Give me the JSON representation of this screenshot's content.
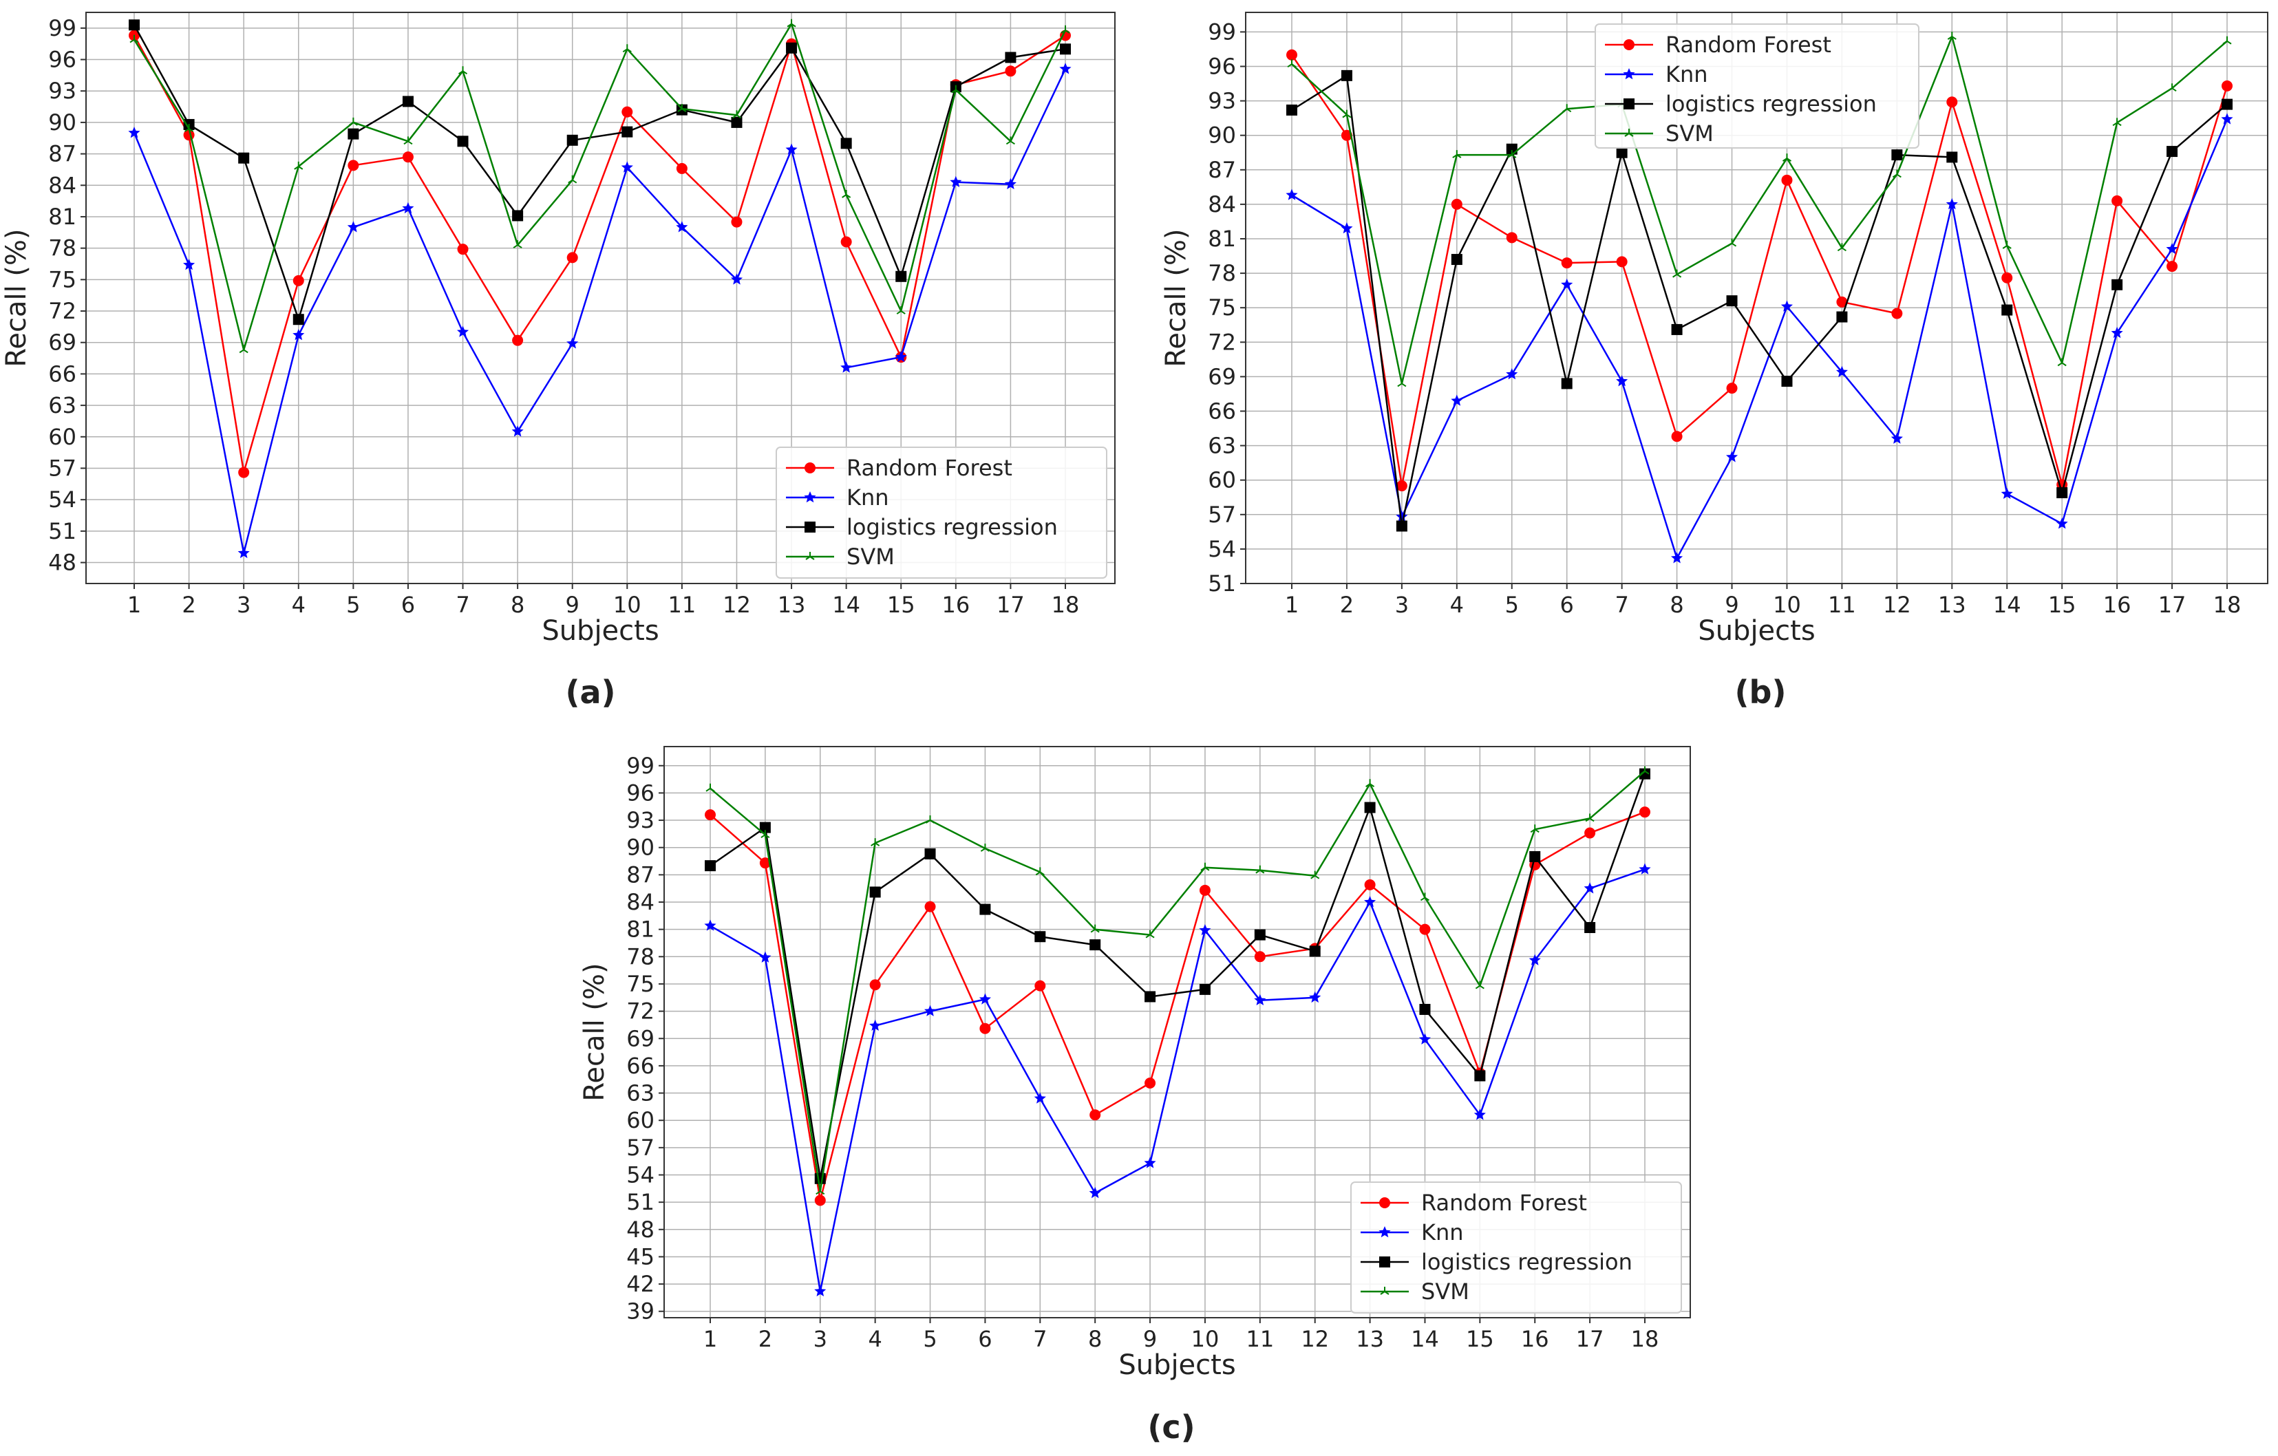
{
  "series_colors": {
    "Random Forest": "#ff0000",
    "Knn": "#0000ff",
    "logistics regression": "#000000",
    "SVM": "#008000"
  },
  "chart_data": [
    {
      "id": "a",
      "panel_label": "(a)",
      "type": "line",
      "xlabel": "Subjects",
      "ylabel": "Recall (%)",
      "x": [
        1,
        2,
        3,
        4,
        5,
        6,
        7,
        8,
        9,
        10,
        11,
        12,
        13,
        14,
        15,
        16,
        17,
        18
      ],
      "yticks": [
        48,
        51,
        54,
        57,
        60,
        63,
        66,
        69,
        72,
        75,
        78,
        81,
        84,
        87,
        90,
        93,
        96,
        99
      ],
      "ylim": [
        46,
        100.5
      ],
      "legend": "bottom-right",
      "series": [
        {
          "name": "Random Forest",
          "marker": "circle",
          "values": [
            98.3,
            88.8,
            56.6,
            74.9,
            85.9,
            86.7,
            77.9,
            69.2,
            77.1,
            91.0,
            85.6,
            80.5,
            97.5,
            78.6,
            67.6,
            93.6,
            94.9,
            98.3
          ]
        },
        {
          "name": "Knn",
          "marker": "star",
          "values": [
            89.0,
            76.4,
            48.9,
            69.7,
            80.0,
            81.8,
            70.0,
            60.5,
            68.9,
            85.7,
            80.0,
            75.0,
            87.4,
            66.6,
            67.6,
            84.3,
            84.1,
            95.1
          ]
        },
        {
          "name": "logistics regression",
          "marker": "square",
          "values": [
            99.3,
            89.8,
            86.6,
            71.2,
            88.9,
            92.0,
            88.2,
            81.1,
            88.3,
            89.1,
            91.2,
            90.0,
            97.1,
            88.0,
            75.3,
            93.4,
            96.2,
            97.0
          ]
        },
        {
          "name": "SVM",
          "marker": "tri",
          "values": [
            97.9,
            89.4,
            68.3,
            85.8,
            90.0,
            88.2,
            94.9,
            78.3,
            84.5,
            97.0,
            91.3,
            90.7,
            99.4,
            83.1,
            72.0,
            93.1,
            88.2,
            98.8
          ]
        }
      ]
    },
    {
      "id": "b",
      "panel_label": "(b)",
      "type": "line",
      "xlabel": "Subjects",
      "ylabel": "Recall (%)",
      "x": [
        1,
        2,
        3,
        4,
        5,
        6,
        7,
        8,
        9,
        10,
        11,
        12,
        13,
        14,
        15,
        16,
        17,
        18
      ],
      "yticks": [
        51,
        54,
        57,
        60,
        63,
        66,
        69,
        72,
        75,
        78,
        81,
        84,
        87,
        90,
        93,
        96,
        99
      ],
      "ylim": [
        51,
        100.7
      ],
      "legend": "top-left",
      "series": [
        {
          "name": "Random Forest",
          "marker": "circle",
          "values": [
            97.0,
            90.0,
            59.5,
            84.0,
            81.1,
            78.9,
            79.0,
            63.8,
            68.0,
            86.1,
            75.5,
            74.5,
            92.9,
            77.6,
            59.6,
            84.3,
            78.6,
            94.3
          ]
        },
        {
          "name": "Knn",
          "marker": "star",
          "values": [
            84.8,
            81.9,
            56.8,
            66.9,
            69.2,
            77.0,
            68.6,
            53.2,
            62.0,
            75.1,
            69.4,
            63.6,
            84.0,
            58.8,
            56.2,
            72.8,
            80.1,
            91.4
          ]
        },
        {
          "name": "logistics regression",
          "marker": "square",
          "values": [
            92.2,
            95.2,
            56.0,
            79.2,
            88.8,
            68.4,
            88.5,
            73.1,
            75.6,
            68.6,
            74.2,
            88.3,
            88.1,
            74.8,
            58.9,
            77.0,
            88.6,
            92.7
          ]
        },
        {
          "name": "SVM",
          "marker": "tri",
          "values": [
            96.2,
            91.8,
            68.4,
            88.3,
            88.3,
            92.3,
            92.7,
            77.9,
            80.6,
            88.0,
            80.2,
            86.6,
            98.6,
            80.4,
            70.2,
            91.1,
            94.1,
            98.2
          ]
        }
      ]
    },
    {
      "id": "c",
      "panel_label": "(c)",
      "type": "line",
      "xlabel": "Subjects",
      "ylabel": "Recall (%)",
      "x": [
        1,
        2,
        3,
        4,
        5,
        6,
        7,
        8,
        9,
        10,
        11,
        12,
        13,
        14,
        15,
        16,
        17,
        18
      ],
      "yticks": [
        39,
        42,
        45,
        48,
        51,
        54,
        57,
        60,
        63,
        66,
        69,
        72,
        75,
        78,
        81,
        84,
        87,
        90,
        93,
        96,
        99
      ],
      "ylim": [
        38.3,
        101.1
      ],
      "legend": "bottom-right",
      "series": [
        {
          "name": "Random Forest",
          "marker": "circle",
          "values": [
            93.6,
            88.3,
            51.2,
            74.9,
            83.5,
            70.1,
            74.8,
            60.6,
            64.1,
            85.3,
            78.0,
            78.9,
            85.9,
            81.0,
            65.2,
            88.1,
            91.6,
            93.9
          ]
        },
        {
          "name": "Knn",
          "marker": "star",
          "values": [
            81.4,
            77.9,
            41.2,
            70.4,
            72.0,
            73.3,
            62.4,
            52.0,
            55.3,
            80.9,
            73.2,
            73.5,
            84.0,
            68.9,
            60.6,
            77.6,
            85.5,
            87.6
          ]
        },
        {
          "name": "logistics regression",
          "marker": "square",
          "values": [
            88.0,
            92.2,
            53.6,
            85.1,
            89.3,
            83.2,
            80.2,
            79.3,
            73.6,
            74.4,
            80.4,
            78.6,
            94.4,
            72.2,
            64.9,
            89.0,
            81.2,
            98.1
          ]
        },
        {
          "name": "SVM",
          "marker": "tri",
          "values": [
            96.5,
            91.4,
            52.2,
            90.5,
            93.0,
            89.9,
            87.3,
            81.0,
            80.4,
            87.8,
            87.5,
            86.9,
            97.0,
            84.5,
            74.8,
            92.0,
            93.2,
            98.4
          ]
        }
      ]
    }
  ]
}
